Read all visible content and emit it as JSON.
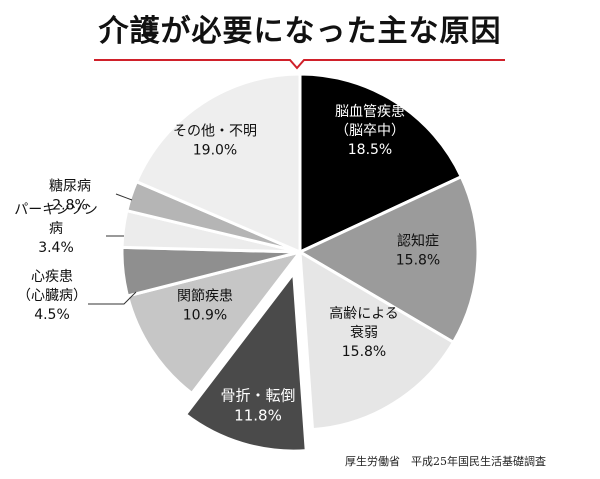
{
  "title": "介護が必要になった主な原因",
  "source": "厚生労働省　平成25年国民生活基礎調査",
  "colors": {
    "accent": "#d0202a",
    "stroke": "#ffffff",
    "text_dark": "#111111",
    "text_light": "#ffffff"
  },
  "chart_data": {
    "type": "pie",
    "title": "介護が必要になった主な原因",
    "slices": [
      {
        "label_lines": [
          "脳血管疾患",
          "（脳卒中）"
        ],
        "value": 18.5,
        "value_label": "18.5%",
        "color": "#000000",
        "text_color": "#ffffff"
      },
      {
        "label_lines": [
          "認知症"
        ],
        "value": 15.8,
        "value_label": "15.8%",
        "color": "#9b9b9b",
        "text_color": "#111111"
      },
      {
        "label_lines": [
          "高齢による",
          "衰弱"
        ],
        "value": 15.8,
        "value_label": "15.8%",
        "color": "#e6e6e6",
        "text_color": "#111111"
      },
      {
        "label_lines": [
          "骨折・転倒"
        ],
        "value": 11.8,
        "value_label": "11.8%",
        "color": "#4a4a4a",
        "text_color": "#ffffff",
        "exploded": true
      },
      {
        "label_lines": [
          "関節疾患"
        ],
        "value": 10.9,
        "value_label": "10.9%",
        "color": "#c6c6c6",
        "text_color": "#111111"
      },
      {
        "label_lines": [
          "心疾患",
          "（心臓病）"
        ],
        "value": 4.5,
        "value_label": "4.5%",
        "color": "#8f8f8f",
        "text_color": "#111111",
        "external": true
      },
      {
        "label_lines": [
          "パーキンソン",
          "病"
        ],
        "value": 3.4,
        "value_label": "3.4%",
        "color": "#ececec",
        "text_color": "#111111",
        "external": true
      },
      {
        "label_lines": [
          "糖尿病"
        ],
        "value": 2.8,
        "value_label": "2.8%",
        "color": "#b5b5b5",
        "text_color": "#111111",
        "external": true
      },
      {
        "label_lines": [
          "その他・不明"
        ],
        "value": 19.0,
        "value_label": "19.0%",
        "color": "#eeeeee",
        "text_color": "#111111"
      }
    ]
  }
}
